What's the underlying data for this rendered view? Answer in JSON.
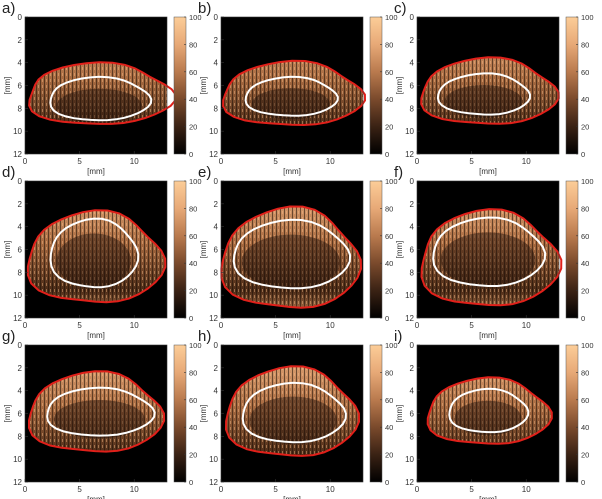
{
  "figure": {
    "axis_label": "[mm]",
    "x_ticks": [
      "0",
      "5",
      "10"
    ],
    "y_ticks": [
      "0",
      "2",
      "4",
      "6",
      "8",
      "10",
      "12"
    ],
    "colorbar_ticks": [
      "0",
      "20",
      "40",
      "60",
      "80",
      "100"
    ],
    "colormap": [
      "#000000",
      "#3a2214",
      "#7a4a2c",
      "#b97a4e",
      "#e7a977",
      "#fccd98"
    ],
    "boundary_color": "#e0201a",
    "contour_color": "#ffffff"
  },
  "panels": [
    {
      "label": "a)"
    },
    {
      "label": "b)"
    },
    {
      "label": "c)"
    },
    {
      "label": "d)"
    },
    {
      "label": "e)"
    },
    {
      "label": "f)"
    },
    {
      "label": "g)"
    },
    {
      "label": "h)"
    },
    {
      "label": "i)"
    }
  ]
}
